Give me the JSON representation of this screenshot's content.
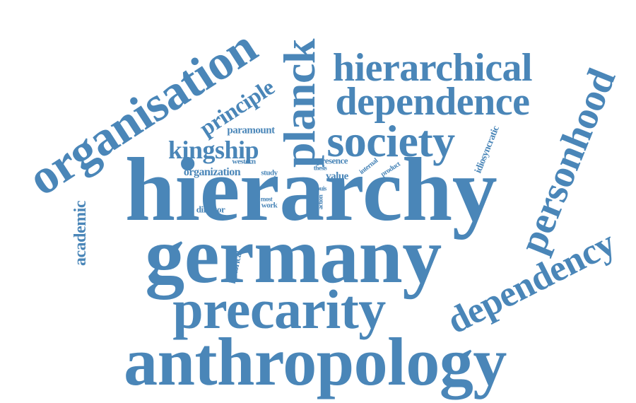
{
  "cloud": {
    "color": "#4a86b8",
    "words": {
      "hierarchy": "hierarchy",
      "germany": "germany",
      "anthropology": "anthropology",
      "precarity": "precarity",
      "organisation": "organisation",
      "hierarchical": "hierarchical",
      "dependence": "dependence",
      "society": "society",
      "planck": "planck",
      "personhood": "personhood",
      "dependency": "dependency",
      "kingship": "kingship",
      "principle": "principle",
      "paramount": "paramount",
      "organization": "organization",
      "western": "western",
      "study": "study",
      "presence": "presence",
      "thesis": "thesis",
      "value": "value",
      "internal": "internal",
      "product": "product",
      "idiosyncratic": "idiosyncratic",
      "louis": "louis",
      "action": "action",
      "most": "most",
      "work": "work",
      "director": "director",
      "academic": "academic",
      "historical": "historical"
    }
  }
}
